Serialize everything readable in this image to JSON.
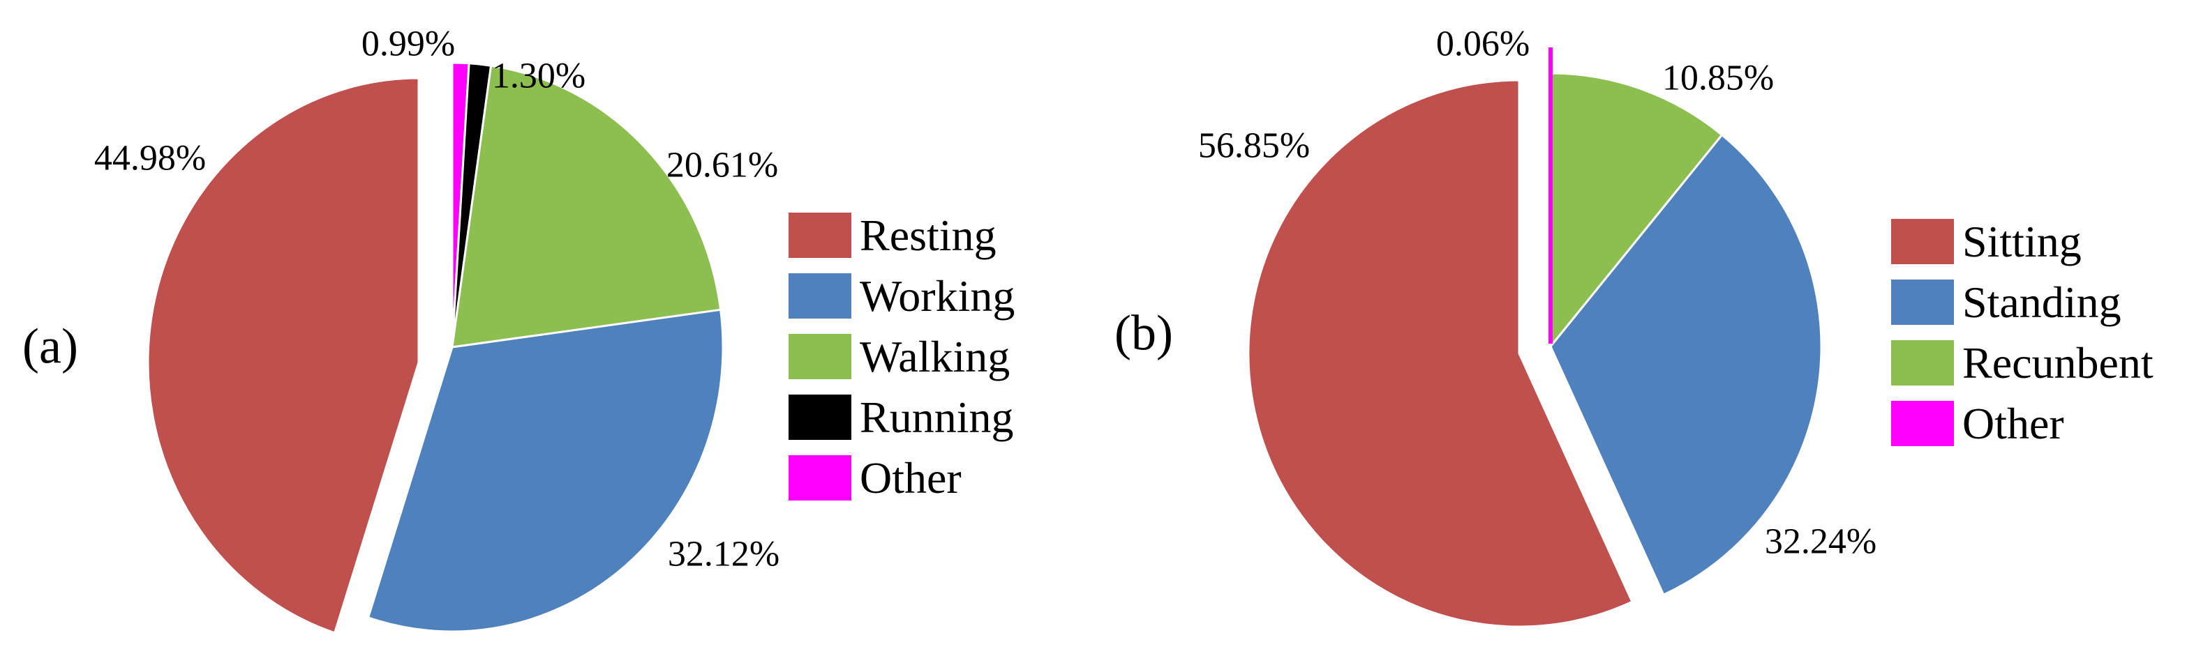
{
  "chart_data": [
    {
      "type": "pie",
      "panel_label": "(a)",
      "title": "",
      "legend_position": "right",
      "background": "#FFFFFF",
      "slice_order_visual": "clockwise from 12 o'clock: Other, Running, Walking, Working, Resting (Resting exploded)",
      "slices": [
        {
          "label": "Resting",
          "value": 44.98,
          "display": "44.98%",
          "color": "#C0504D",
          "exploded": true
        },
        {
          "label": "Working",
          "value": 32.12,
          "display": "32.12%",
          "color": "#4F81BD",
          "exploded": false
        },
        {
          "label": "Walking",
          "value": 20.61,
          "display": "20.61%",
          "color": "#8CBE50",
          "exploded": false
        },
        {
          "label": "Running",
          "value": 1.3,
          "display": "1.30%",
          "color": "#000000",
          "exploded": false
        },
        {
          "label": "Other",
          "value": 0.99,
          "display": "0.99%",
          "color": "#FF00FF",
          "exploded": false
        }
      ]
    },
    {
      "type": "pie",
      "panel_label": "(b)",
      "title": "",
      "legend_position": "right",
      "background": "#FFFFFF",
      "slice_order_visual": "clockwise from 12 o'clock: Other, Recunbent, Standing, Sitting (Sitting exploded)",
      "slices": [
        {
          "label": "Sitting",
          "value": 56.85,
          "display": "56.85%",
          "color": "#C0504D",
          "exploded": true
        },
        {
          "label": "Standing",
          "value": 32.24,
          "display": "32.24%",
          "color": "#4F81BD",
          "exploded": false
        },
        {
          "label": "Recunbent",
          "value": 10.85,
          "display": "10.85%",
          "color": "#8CBE50",
          "exploded": false
        },
        {
          "label": "Other",
          "value": 0.06,
          "display": "0.06%",
          "color": "#FF00FF",
          "exploded": false
        }
      ]
    }
  ]
}
